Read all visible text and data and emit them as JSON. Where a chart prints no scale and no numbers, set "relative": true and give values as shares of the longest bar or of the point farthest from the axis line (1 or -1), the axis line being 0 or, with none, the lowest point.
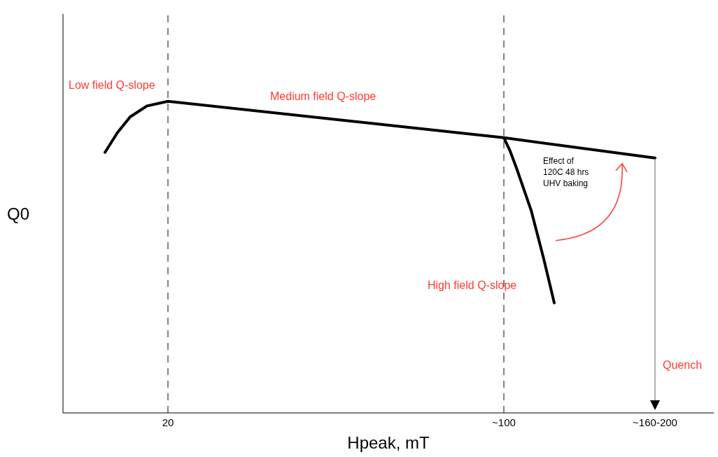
{
  "chart_data": {
    "type": "line",
    "relative": true,
    "xlabel": "Hpeak, mT",
    "ylabel": "Q0",
    "xlim": [
      -5,
      150
    ],
    "xticks": [
      20,
      {
        "value": 100,
        "label": "~100"
      },
      {
        "value": 136,
        "label": "~160-200"
      }
    ],
    "tick_labels": "x",
    "marker": "none",
    "line_style": "solid",
    "series": [
      {
        "color": "#000000",
        "x": [
          5,
          8,
          11,
          15,
          20,
          100,
          136
        ],
        "values": [
          0.836,
          0.9,
          0.95,
          0.985,
          1,
          0.883,
          0.818
        ]
      },
      {
        "color": "#000000",
        "x": [
          100,
          101.5,
          103,
          106.5,
          109.5,
          112
        ],
        "values": [
          0.883,
          0.84,
          0.786,
          0.65,
          0.494,
          0.353
        ]
      }
    ],
    "ref_lines": [
      {
        "axis": "x",
        "value": 20,
        "color": "#333333",
        "line_style": "dashed"
      },
      {
        "axis": "x",
        "value": 100,
        "color": "#333333",
        "line_style": "dashed"
      }
    ],
    "annotations": [
      "Low field Q-slope",
      "Medium field Q-slope",
      "High field Q-slope",
      "Quench",
      "Effect of 120C 48 hrs UHV baking"
    ]
  }
}
